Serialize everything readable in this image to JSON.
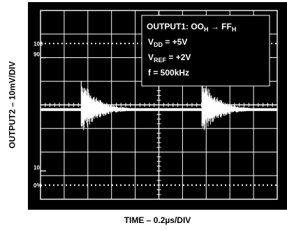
{
  "chart_data": {
    "type": "line",
    "title": "",
    "xlabel": "TIME – 0.2µs/DIV",
    "ylabel": "OUTPUT2 – 10mV/DIV",
    "grid": true,
    "grid_divisions": {
      "x": 10,
      "y": 8
    },
    "reference_markers": [
      {
        "label": "100",
        "level": 6.6
      },
      {
        "label": "90",
        "level": 6.0
      },
      {
        "label": "10",
        "level": 1.2
      },
      {
        "label": "0%",
        "level": 0.6
      }
    ],
    "annotations": {
      "output1_prefix": "OUTPUT1: OO",
      "output1_sub1": "H",
      "output1_arrow": " → FF",
      "output1_sub2": "H",
      "vdd_main": "V",
      "vdd_sub": "DD",
      "vdd_value": " = +5V",
      "vref_main": "V",
      "vref_sub": "REF",
      "vref_value": " = +2V",
      "freq": "f = 500kHz"
    },
    "series": [
      {
        "baseline_div": 3.8,
        "glitches": [
          {
            "time_div": 1.75,
            "peak_div": 0.8,
            "decay_div": 0.7
          },
          {
            "time_div": 6.85,
            "peak_div": 0.8,
            "decay_div": 0.7
          }
        ]
      }
    ]
  }
}
